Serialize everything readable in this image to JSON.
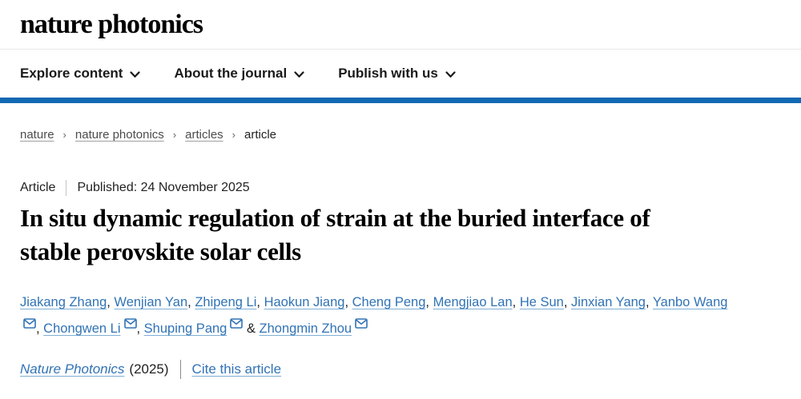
{
  "header": {
    "logo": "nature photonics",
    "nav_items": [
      {
        "label": "Explore content"
      },
      {
        "label": "About the journal"
      },
      {
        "label": "Publish with us"
      }
    ]
  },
  "breadcrumb": {
    "separator": "›",
    "items": [
      {
        "label": "nature",
        "link": true
      },
      {
        "label": "nature photonics",
        "link": true
      },
      {
        "label": "articles",
        "link": true
      },
      {
        "label": "article",
        "link": false
      }
    ]
  },
  "article": {
    "type_label": "Article",
    "published_label": "Published: 24 November 2025",
    "title": "In situ dynamic regulation of strain at the buried interface of stable perovskite solar cells",
    "authors": [
      {
        "name": "Jiakang Zhang",
        "email": false
      },
      {
        "name": "Wenjian Yan",
        "email": false
      },
      {
        "name": "Zhipeng Li",
        "email": false
      },
      {
        "name": "Haokun Jiang",
        "email": false
      },
      {
        "name": "Cheng Peng",
        "email": false
      },
      {
        "name": "Mengjiao Lan",
        "email": false
      },
      {
        "name": "He Sun",
        "email": false
      },
      {
        "name": "Jinxian Yang",
        "email": false
      },
      {
        "name": "Yanbo Wang",
        "email": true
      },
      {
        "name": "Chongwen Li",
        "email": true
      },
      {
        "name": "Shuping Pang",
        "email": true
      },
      {
        "name": "Zhongmin Zhou",
        "email": true
      }
    ],
    "citation": {
      "journal": "Nature Photonics",
      "year": "(2025)",
      "cite_label": "Cite this article"
    }
  },
  "icons": {
    "chevron_down": "chevron-down-icon",
    "envelope": "envelope-icon"
  },
  "colors": {
    "brand_bar_blue": "#1268b2",
    "link_blue": "#3173b5",
    "text_dark": "#222222",
    "breadcrumb_gray": "#4c4c4c"
  }
}
